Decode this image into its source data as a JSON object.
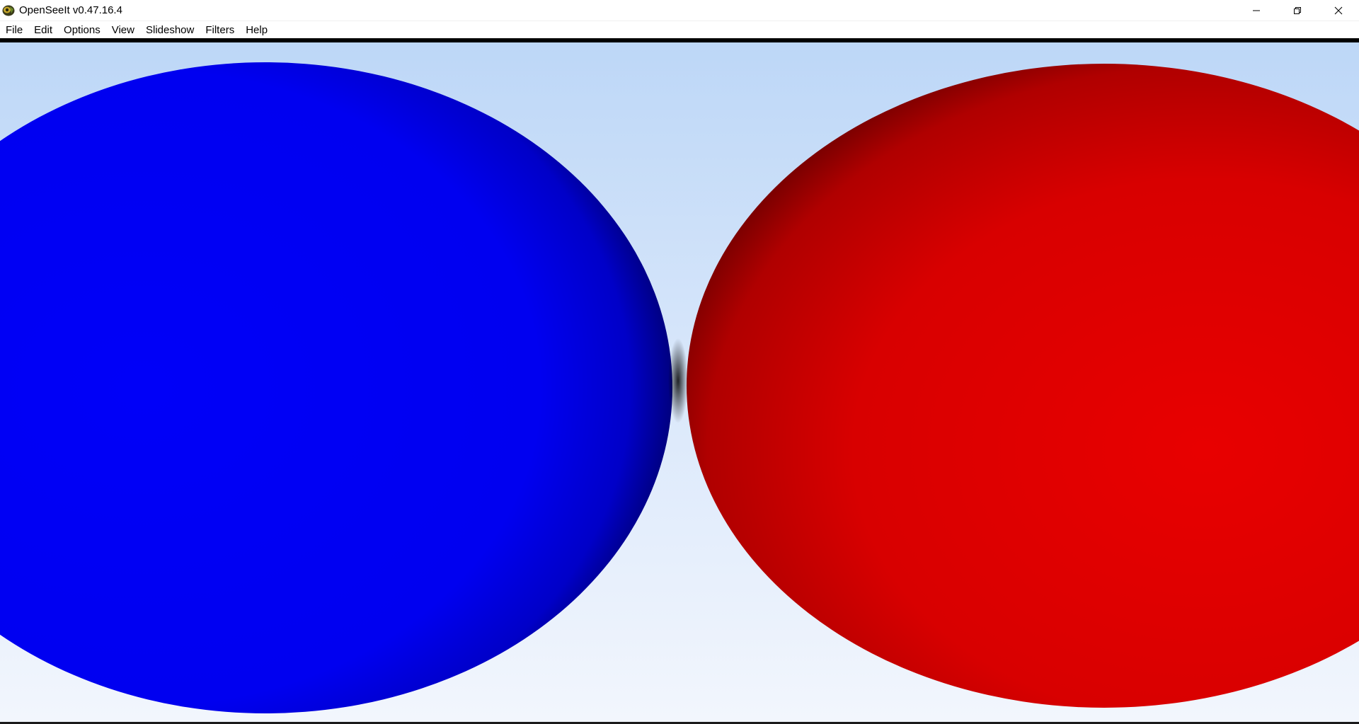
{
  "window": {
    "title": "OpenSeeIt v0.47.16.4",
    "app_icon": "openseeit-logo-icon",
    "controls": {
      "minimize_icon": "minimize-icon",
      "restore_icon": "restore-icon",
      "close_icon": "close-icon"
    }
  },
  "menubar": {
    "items": [
      {
        "label": "File"
      },
      {
        "label": "Edit"
      },
      {
        "label": "Options"
      },
      {
        "label": "View"
      },
      {
        "label": "Slideshow"
      },
      {
        "label": "Filters"
      },
      {
        "label": "Help"
      }
    ]
  },
  "image": {
    "description_colors": {
      "background_top": "#bdd7f7",
      "background_bottom": "#f2f6fd",
      "left_sphere": "#0000f5",
      "right_sphere": "#dc0000",
      "separator": "#000000"
    }
  }
}
